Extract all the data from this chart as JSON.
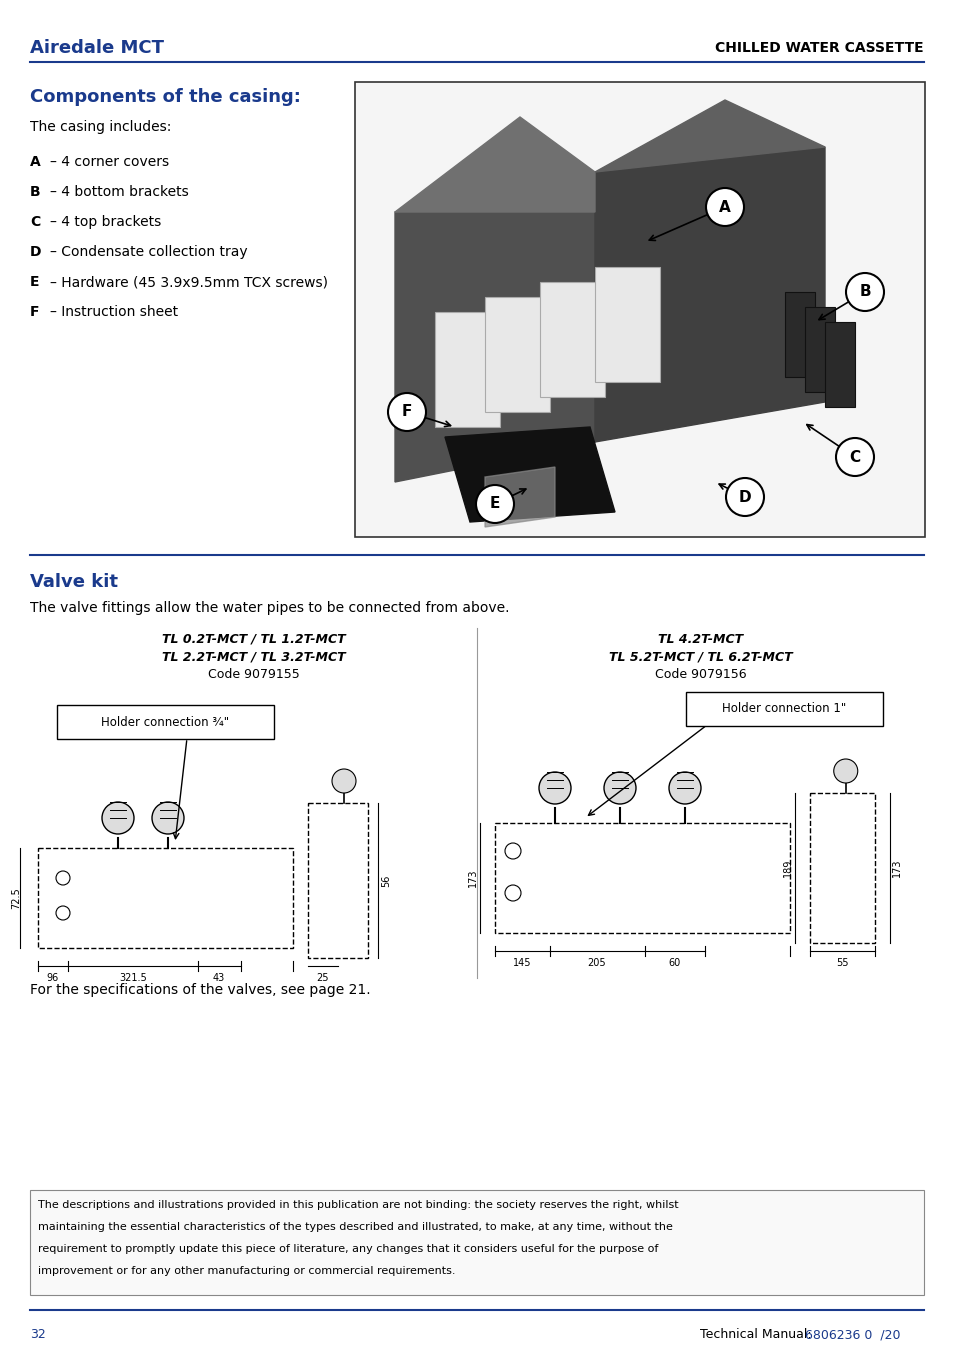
{
  "page_bg": "#ffffff",
  "blue_color": "#1a3a8c",
  "black_color": "#000000",
  "divider_color": "#1a3a8c",
  "header_left": "Airedale MCT",
  "header_right": "CHILLED WATER CASSETTE",
  "section1_title": "Components of the casing:",
  "section1_intro": "The casing includes:",
  "components": [
    {
      "label": "A",
      "desc": "– 4 corner covers"
    },
    {
      "label": "B",
      "desc": "– 4 bottom brackets"
    },
    {
      "label": "C",
      "desc": "– 4 top brackets"
    },
    {
      "label": "D",
      "desc": "– Condensate collection tray"
    },
    {
      "label": "E",
      "desc": "– Hardware (45 3.9x9.5mm TCX screws)"
    },
    {
      "label": "F",
      "desc": "– Instruction sheet"
    }
  ],
  "section2_title": "Valve kit",
  "section2_intro": "The valve fittings allow the water pipes to be connected from above.",
  "valve_left_title1": "TL 0.2T-MCT / TL 1.2T-MCT",
  "valve_left_title2": "TL 2.2T-MCT / TL 3.2T-MCT",
  "valve_left_code": "Code 9079155",
  "valve_right_title1": "TL 4.2T-MCT",
  "valve_right_title2": "TL 5.2T-MCT / TL 6.2T-MCT",
  "valve_right_code": "Code 9079156",
  "valve_left_holder": "Holder connection ¾\"",
  "valve_right_holder": "Holder connection 1\"",
  "section2_note": "For the specifications of the valves, see page 21.",
  "footer_note": "The descriptions and illustrations provided in this publication are not binding: the society reserves the right, whilst\nmaintaining the essential characteristics of the types described and illustrated, to make, at any time, without the\nrequirement to promptly update this piece of literature, any changes that it considers useful for the purpose of\nimprovement or for any other manufacturing or commercial requirements.",
  "footer_page": "32",
  "footer_manual": "Technical Manual: ",
  "footer_code": "6806236 0  /20"
}
